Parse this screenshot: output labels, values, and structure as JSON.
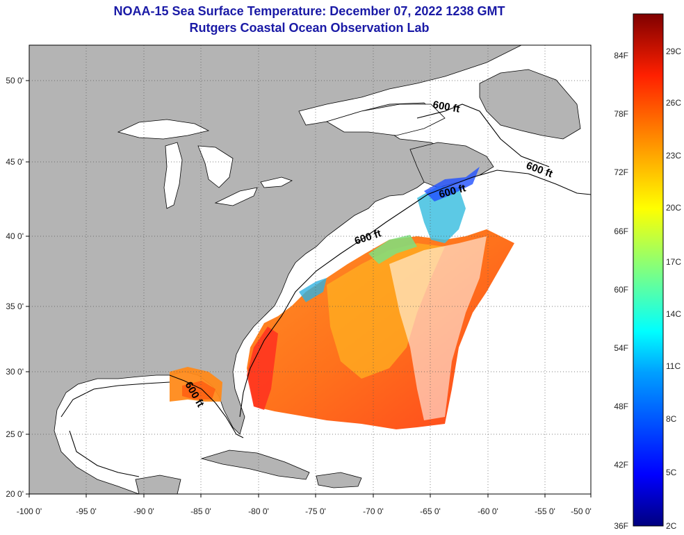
{
  "header": {
    "title": "NOAA-15 Sea Surface Temperature:  December 07, 2022 1238 GMT",
    "subtitle": "Rutgers Coastal Ocean Observation Lab"
  },
  "map": {
    "lon_range": [
      -100,
      -50
    ],
    "lat_range": [
      20,
      52.5
    ],
    "x_ticks": [
      "-100 0'",
      "-95 0'",
      "-90 0'",
      "-85 0'",
      "-80 0'",
      "-75 0'",
      "-70 0'",
      "-65 0'",
      "-60 0'",
      "-55 0'",
      "-50 0'"
    ],
    "y_ticks": [
      "20 0'",
      "25 0'",
      "30 0'",
      "35 0'",
      "40 0'",
      "45 0'",
      "50 0'"
    ],
    "contour_labels": [
      "600 ft",
      "600 ft",
      "600 ft",
      "600 ft",
      "600 ft"
    ],
    "colors": {
      "land": "#b4b4b4",
      "ocean": "#ffffff",
      "grid": "#555555"
    }
  },
  "colorbar": {
    "fahrenheit_labels": [
      "84F",
      "78F",
      "72F",
      "66F",
      "60F",
      "54F",
      "48F",
      "42F",
      "36F"
    ],
    "celsius_labels": [
      "29C",
      "26C",
      "23C",
      "20C",
      "17C",
      "14C",
      "11C",
      "8C",
      "5C",
      "2C"
    ],
    "min_color": "#00008b",
    "max_color": "#800000"
  }
}
